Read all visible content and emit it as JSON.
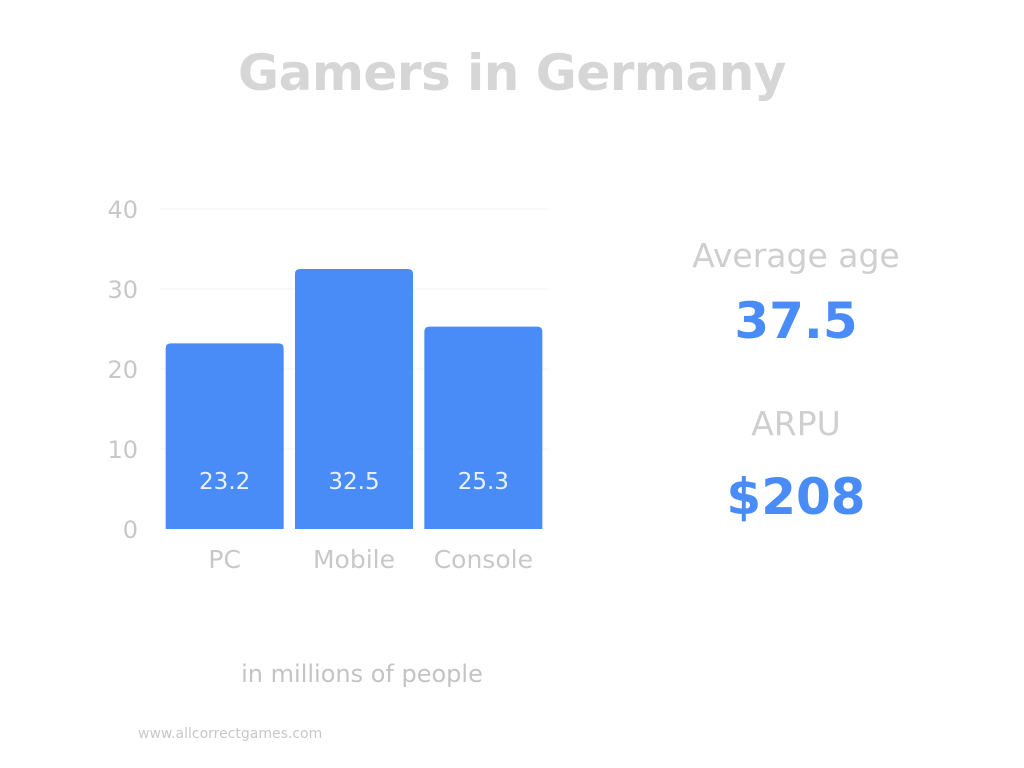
{
  "title": "Gamers in Germany",
  "subtitle": "in millions of people",
  "source": "www.allcorrectgames.com",
  "stats": [
    {
      "label": "Average age",
      "value": "37.5"
    },
    {
      "label": "ARPU",
      "value": "$208"
    }
  ],
  "colors": {
    "bar": "#4a8cf7",
    "title": "#d6d6d6",
    "axis_text": "#c8c8c8",
    "stat_value": "#4a8cf7"
  },
  "chart_data": {
    "type": "bar",
    "title": "Gamers in Germany",
    "categories": [
      "PC",
      "Mobile",
      "Console"
    ],
    "values": [
      23.2,
      32.5,
      25.3
    ],
    "data_labels": [
      "23.2",
      "32.5",
      "25.3"
    ],
    "y_ticks": [
      0,
      10,
      20,
      30,
      40
    ],
    "ylim": [
      0,
      40
    ],
    "grid": true,
    "legend": "none",
    "xlabel": "",
    "ylabel": ""
  }
}
